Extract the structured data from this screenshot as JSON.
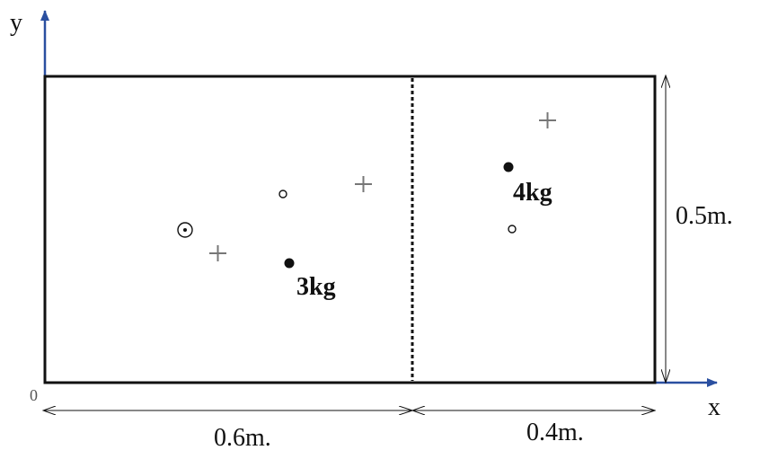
{
  "axes": {
    "x_label": "x",
    "y_label": "y",
    "origin_label": "0"
  },
  "dimensions": {
    "left_width": "0.6m.",
    "right_width": "0.4m.",
    "height": "0.5m."
  },
  "masses": {
    "left": "3kg",
    "right": "4kg"
  },
  "colors": {
    "axis": "#2a4fa0",
    "outline": "#111111",
    "cross": "#777777",
    "text": "#111111",
    "light_text": "#555555"
  },
  "marks": {
    "mass_dot": "filled-circle",
    "small_point": "open-circle",
    "combined_center": "circled-dot",
    "center_marker": "plus-sign"
  }
}
